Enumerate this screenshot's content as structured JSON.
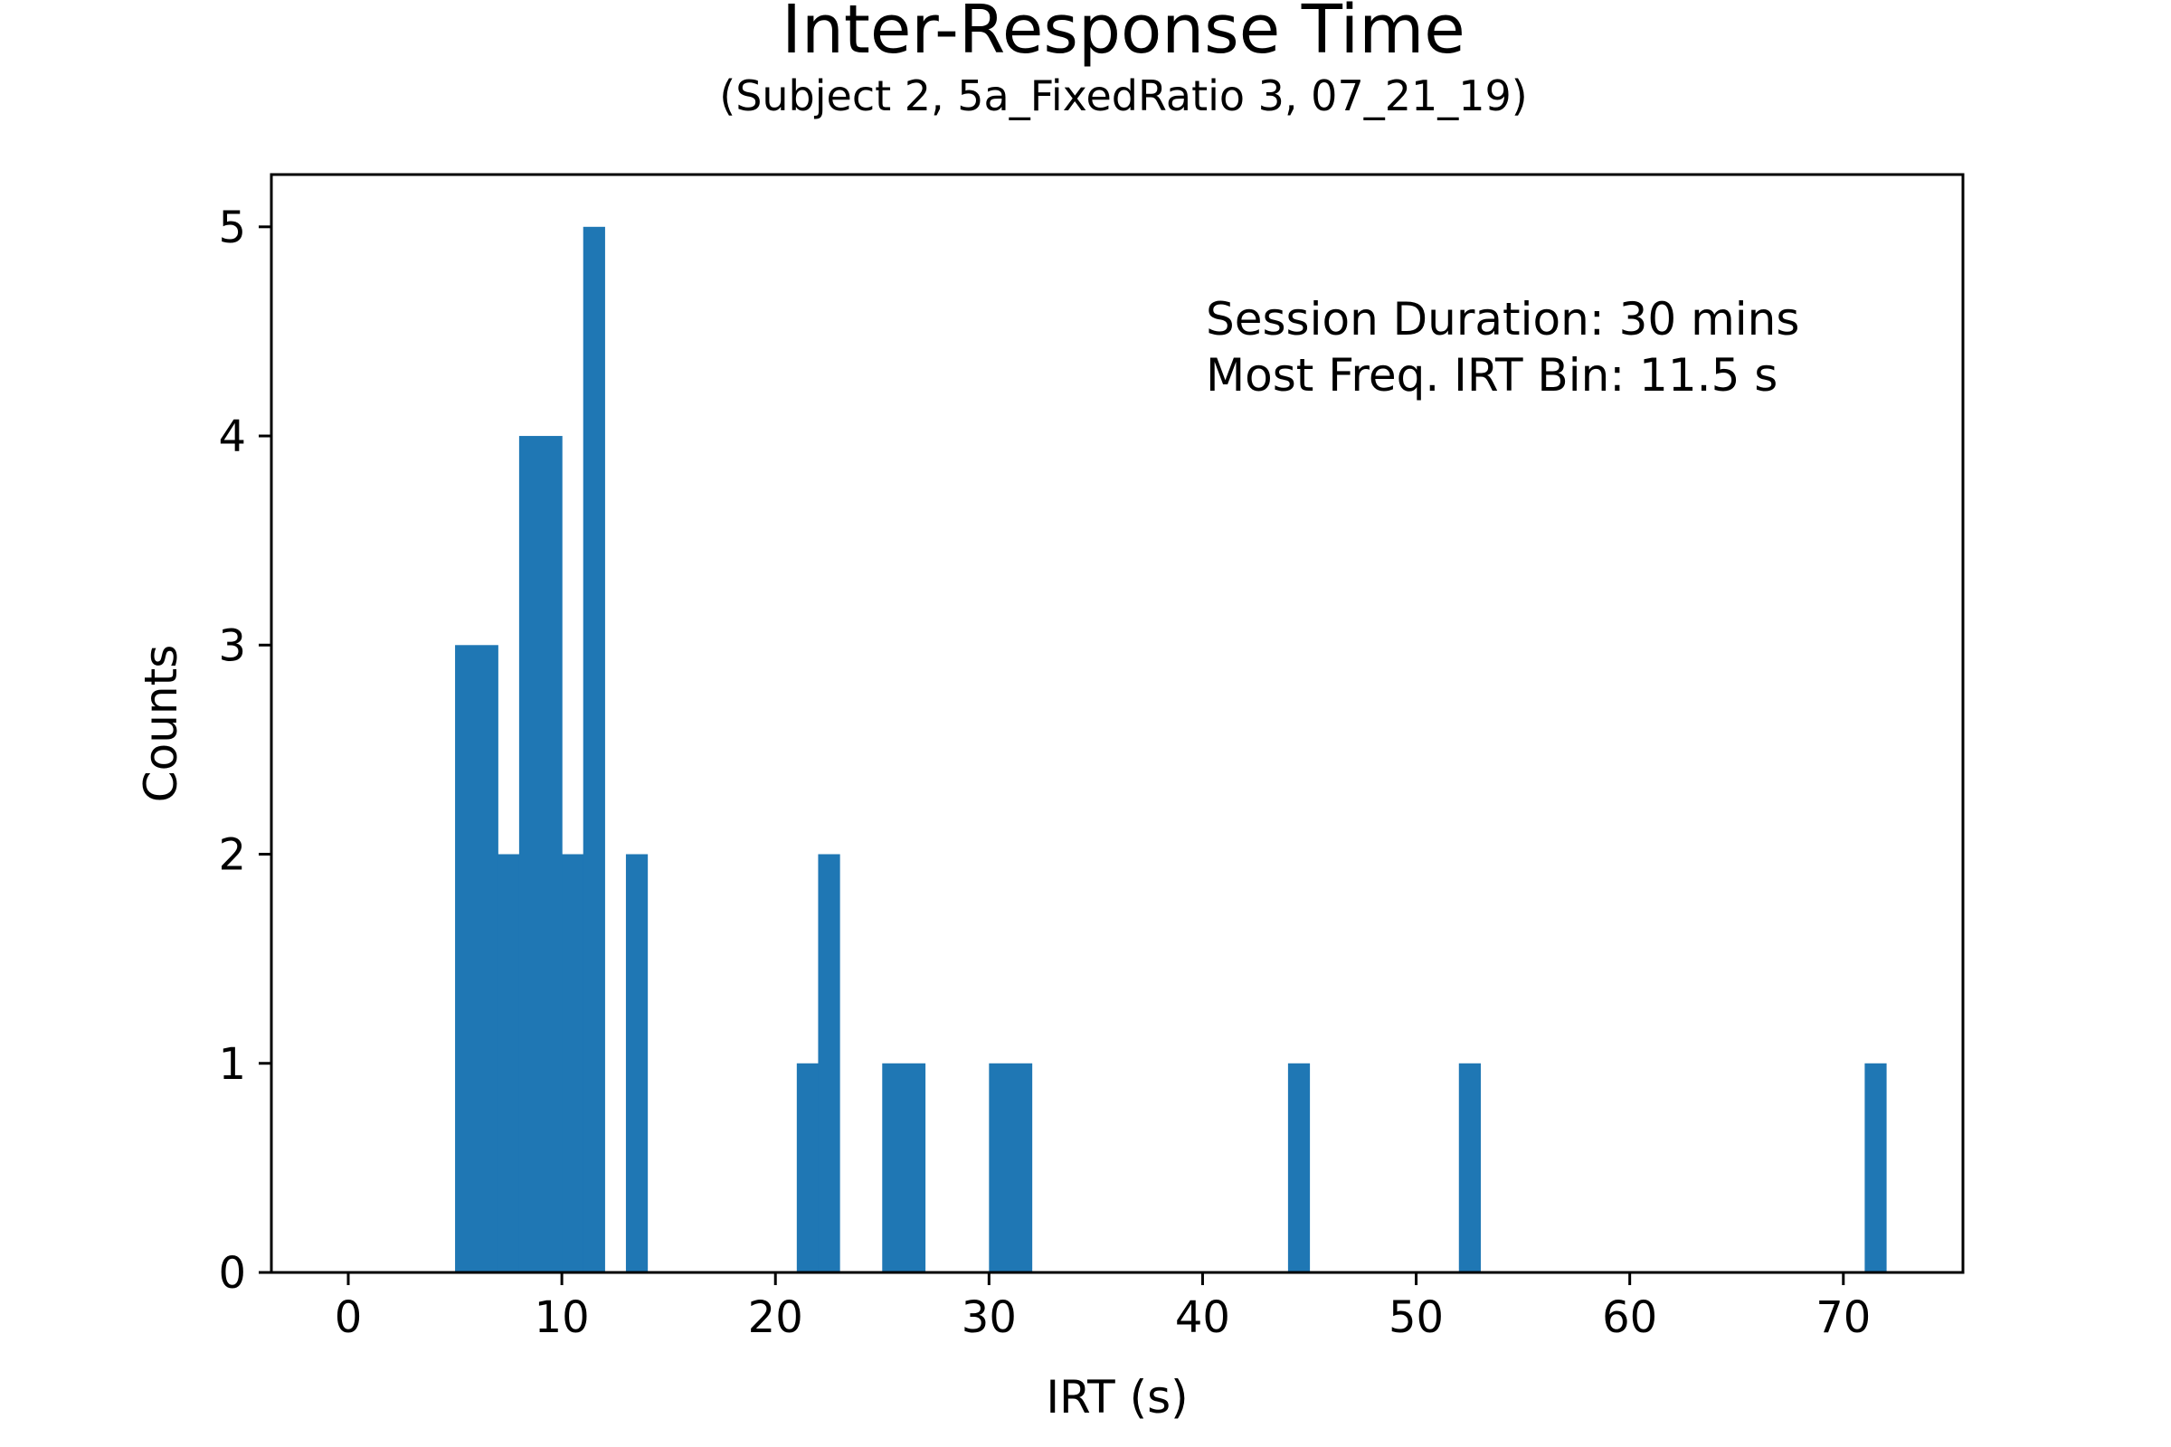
{
  "chart_data": {
    "type": "bar",
    "title": "Inter-Response Time",
    "subtitle": "(Subject 2, 5a_FixedRatio 3, 07_21_19)",
    "xlabel": "IRT (s)",
    "ylabel": "Counts",
    "xlim": [
      -3.6,
      75.6
    ],
    "ylim": [
      0,
      5.25
    ],
    "xticks": [
      0,
      10,
      20,
      30,
      40,
      50,
      60,
      70
    ],
    "yticks": [
      0,
      1,
      2,
      3,
      4,
      5
    ],
    "grid": false,
    "bar_color": "#1f77b4",
    "bins": [
      {
        "x0": 5.0,
        "x1": 7.0,
        "count": 3
      },
      {
        "x0": 7.0,
        "x1": 8.0,
        "count": 2
      },
      {
        "x0": 8.0,
        "x1": 10.0,
        "count": 4
      },
      {
        "x0": 10.0,
        "x1": 11.0,
        "count": 2
      },
      {
        "x0": 11.0,
        "x1": 12.0,
        "count": 5
      },
      {
        "x0": 13.0,
        "x1": 14.0,
        "count": 2
      },
      {
        "x0": 21.0,
        "x1": 22.0,
        "count": 1
      },
      {
        "x0": 22.0,
        "x1": 23.0,
        "count": 2
      },
      {
        "x0": 25.0,
        "x1": 27.0,
        "count": 1
      },
      {
        "x0": 30.0,
        "x1": 32.0,
        "count": 1
      },
      {
        "x0": 44.0,
        "x1": 45.0,
        "count": 1
      },
      {
        "x0": 52.0,
        "x1": 53.0,
        "count": 1
      },
      {
        "x0": 71.0,
        "x1": 72.0,
        "count": 1
      }
    ],
    "annotations": [
      "Session Duration: 30 mins",
      "Most Freq. IRT Bin: 11.5 s"
    ]
  }
}
